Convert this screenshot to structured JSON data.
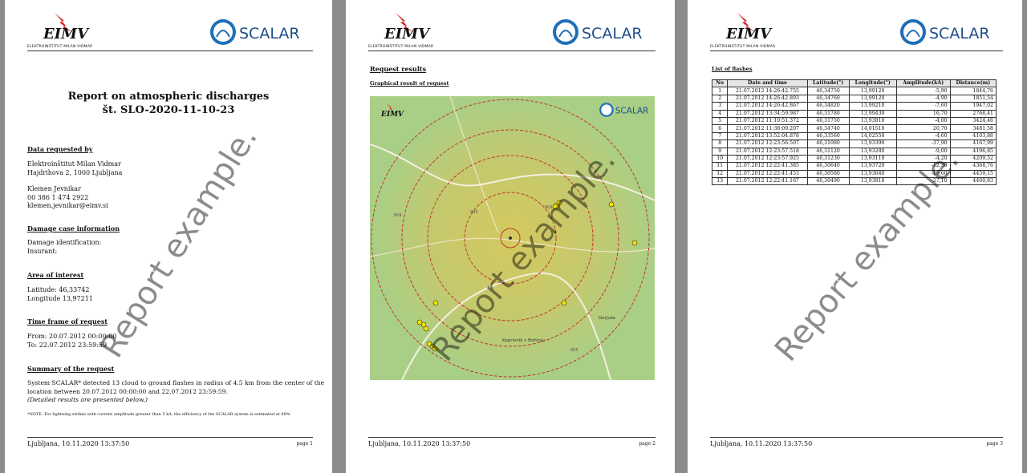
{
  "branding": {
    "eimv_logo_text": "EIMV",
    "eimv_subtitle": "ELEKTROINŠTITUT MILAN VIDMAR",
    "scalar_logo_text": "SCALAR"
  },
  "watermark": "Report example.",
  "footer": {
    "place_date": "Ljubljana, 10.11.2020 13:37:50"
  },
  "page1": {
    "title_line1": "Report on atmospheric discharges",
    "title_line2": "št. SLO-2020-11-10-23",
    "requested_by_heading": "Data requested by",
    "org_name": "Elektroinštitut Milan Vidmar",
    "org_address": "Hajdrihova 2, 1000 Ljubljana",
    "person_name": "Klemen Jevnikar",
    "person_phone": "00 386 1 474 2922",
    "person_email": "klemen.jevnikar@eimv.si",
    "damage_heading": "Damage case information",
    "damage_id_label": "Damage identification:",
    "insurant_label": "Insurant:",
    "area_heading": "Area of interest",
    "latitude": "Latitude: 46,33742",
    "longitude": "Longitude 13,97211",
    "timeframe_heading": "Time frame of request",
    "from": "From: 20.07.2012 00:00:00",
    "to": "To: 22.07.2012 23:59:59",
    "summary_heading": "Summary of the request",
    "summary_line1": "System SCALAR* detected 13 cloud to ground flashes in radius of 4.5 km from the center of the",
    "summary_line2": "location between 20.07.2012 00:00:00 and 22.07.2012 23:59:59.",
    "summary_line3": "(Detailed results are presented below.)",
    "note": "*NOTE: For lightning strikes with current amplitude greater than 5 kA, the efficiency of the SCALAR system is estimated at 98%.",
    "page_label": "page 1"
  },
  "page2": {
    "heading": "Request results",
    "subheading": "Graphical result of request",
    "map_labels": {
      "place1": "Koprivnik v Bohinju",
      "place2": "Gorjuše",
      "road1": "909",
      "road2": "905",
      "road3": "909",
      "road4": "905"
    },
    "page_label": "page 2"
  },
  "page3": {
    "heading": "List of flashes",
    "columns": [
      "No",
      "Date and time",
      "Latitude(°)",
      "Longitude(°)",
      "Amplitude(kA)",
      "Distance(m)"
    ],
    "rows": [
      [
        "1",
        "21.07.2012 14:26:42.755",
        "46,34750",
        "13,99120",
        "-5,90",
        "1844,76"
      ],
      [
        "2",
        "21.07.2012 14:26:42.893",
        "46,34760",
        "13,99120",
        "-4,90",
        "1851,54"
      ],
      [
        "3",
        "21.07.2012 14:26:42.867",
        "46,34820",
        "13,99210",
        "-7,60",
        "1947,02"
      ],
      [
        "4",
        "21.07.2012 13:34:59.987",
        "46,31780",
        "13,99430",
        "16,70",
        "2768,41"
      ],
      [
        "5",
        "21.07.2012 11:10:51.372",
        "46,31750",
        "13,93810",
        "-4,00",
        "3424,46"
      ],
      [
        "6",
        "21.07.2012 11:38:09.207",
        "46,34740",
        "14,01510",
        "20,70",
        "3481,58"
      ],
      [
        "7",
        "21.07.2012 13:52:04.878",
        "46,33560",
        "14,02550",
        "-4,60",
        "4103,88"
      ],
      [
        "8",
        "21.07.2012 12:23:56.507",
        "46,31080",
        "13,93390",
        "-37,90",
        "4167,99"
      ],
      [
        "9",
        "21.07.2012 12:23:57.518",
        "46,31120",
        "13,93280",
        "-9,00",
        "4196,85"
      ],
      [
        "10",
        "21.07.2012 12:23:57.925",
        "46,31230",
        "13,93110",
        "-4,20",
        "4209,52"
      ],
      [
        "11",
        "21.07.2012 12:22:41.385",
        "46,30640",
        "13,93720",
        "-12,30",
        "4368,76"
      ],
      [
        "12",
        "21.07.2012 12:22:41.453",
        "46,30580",
        "13,93640",
        "-19,60",
        "4459,15"
      ],
      [
        "13",
        "21.07.2012 12:22:41.167",
        "46,30490",
        "13,93810",
        "-27,10",
        "4460,83"
      ]
    ],
    "page_label": "page 3"
  },
  "colors": {
    "ring": "#c0392b",
    "map_green": "#a8d08d",
    "map_yellow": "#e6d35a",
    "flash_marker": "#f4e300"
  }
}
